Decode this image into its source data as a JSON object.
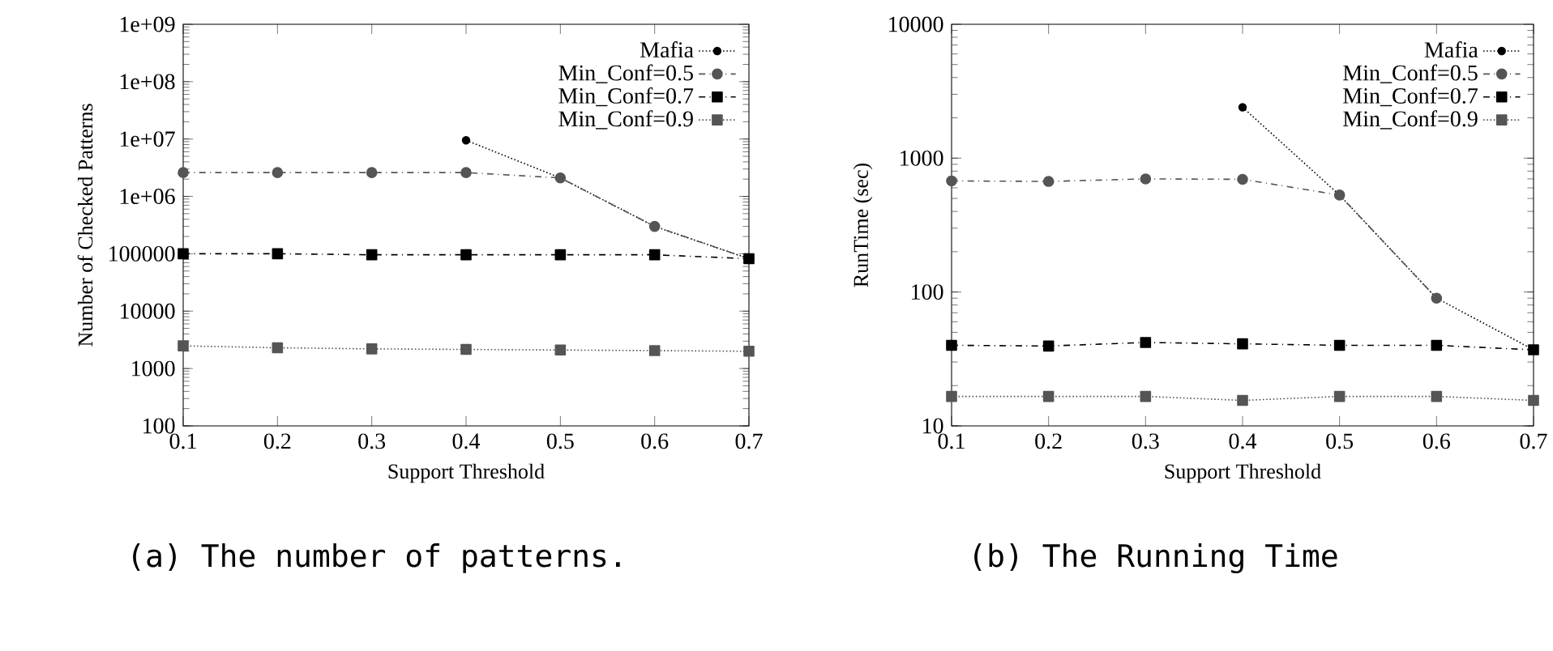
{
  "chart_data": [
    {
      "type": "line",
      "xlabel": "Support Threshold",
      "ylabel": "Number of Checked Patterns",
      "log": "y",
      "legend": "top right",
      "grid": false,
      "x": [
        0.1,
        0.2,
        0.3,
        0.4,
        0.5,
        0.6,
        0.7
      ],
      "xlim": [
        0.1,
        0.7
      ],
      "xticks": [
        0.1,
        0.2,
        0.3,
        0.4,
        0.5,
        0.6,
        0.7
      ],
      "ylim": [
        100,
        1000000000
      ],
      "yticks": [
        100,
        1000,
        10000,
        100000,
        {
          "value": 1000000,
          "label": "1e+06"
        },
        {
          "value": 10000000,
          "label": "1e+07"
        },
        {
          "value": 100000000,
          "label": "1e+08"
        },
        {
          "value": 1000000000,
          "label": "1e+09"
        }
      ],
      "series": [
        {
          "name": "Mafia",
          "color": "#000000",
          "marker": "circle",
          "line_style": "dotted",
          "x": [
            0.4,
            0.5,
            0.6,
            0.7
          ],
          "values": [
            9500000,
            2100000,
            300000,
            82000
          ]
        },
        {
          "name": "Min_Conf=0.5",
          "color": "#555555",
          "marker": "circle",
          "line_style": "dashed",
          "values": [
            2600000,
            2600000,
            2600000,
            2600000,
            2100000,
            300000,
            82000
          ]
        },
        {
          "name": "Min_Conf=0.7",
          "color": "#000000",
          "marker": "square",
          "line_style": "dashed",
          "values": [
            100000,
            100000,
            96000,
            96000,
            96000,
            96000,
            82000
          ]
        },
        {
          "name": "Min_Conf=0.9",
          "color": "#555555",
          "marker": "square",
          "line_style": "dotted",
          "values": [
            2480,
            2300,
            2200,
            2150,
            2100,
            2050,
            2000
          ]
        }
      ],
      "annotations": [
        "(a) The number of patterns."
      ]
    },
    {
      "type": "line",
      "xlabel": "Support Threshold",
      "ylabel": "RunTime (sec)",
      "log": "y",
      "legend": "top right",
      "grid": false,
      "x": [
        0.1,
        0.2,
        0.3,
        0.4,
        0.5,
        0.6,
        0.7
      ],
      "xlim": [
        0.1,
        0.7
      ],
      "xticks": [
        0.1,
        0.2,
        0.3,
        0.4,
        0.5,
        0.6,
        0.7
      ],
      "ylim": [
        10,
        10000
      ],
      "yticks": [
        10,
        100,
        1000,
        10000
      ],
      "series": [
        {
          "name": "Mafia",
          "color": "#000000",
          "marker": "circle",
          "line_style": "dotted",
          "x": [
            0.4,
            0.5,
            0.6,
            0.7
          ],
          "values": [
            2400,
            530,
            90,
            37
          ]
        },
        {
          "name": "Min_Conf=0.5",
          "color": "#555555",
          "marker": "circle",
          "line_style": "dashed",
          "values": [
            676,
            670,
            700,
            695,
            530,
            90,
            null
          ]
        },
        {
          "name": "Min_Conf=0.7",
          "color": "#000000",
          "marker": "square",
          "line_style": "dashed",
          "values": [
            40,
            39.5,
            42,
            41,
            40,
            40,
            37
          ]
        },
        {
          "name": "Min_Conf=0.9",
          "color": "#555555",
          "marker": "square",
          "line_style": "dotted",
          "values": [
            16.6,
            16.6,
            16.6,
            15.5,
            16.6,
            16.6,
            15.5
          ]
        }
      ],
      "annotations": [
        "(b) The Running Time"
      ]
    }
  ]
}
